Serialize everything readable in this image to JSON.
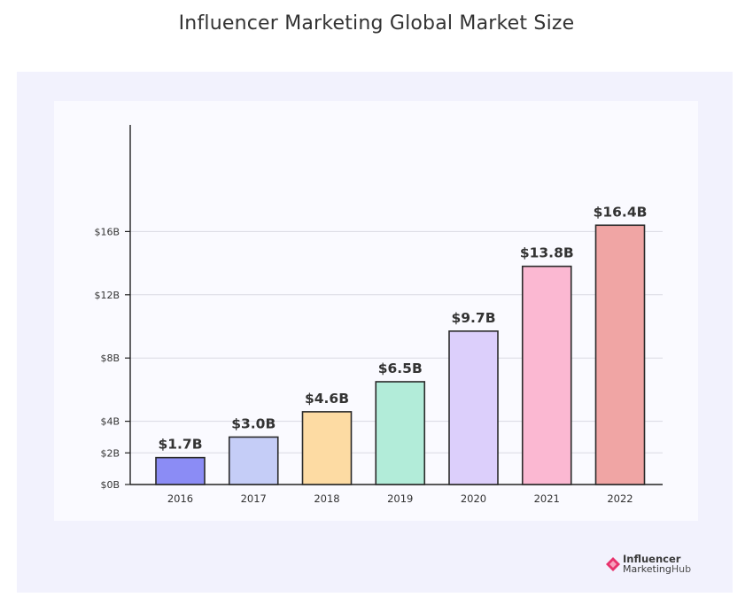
{
  "title": "Influencer Marketing Global Market Size",
  "brand": {
    "line1": "Influencer",
    "line2a": "Marketing",
    "line2b": "Hub"
  },
  "chart_data": {
    "type": "bar",
    "title": "Influencer Marketing Global Market Size",
    "xlabel": "",
    "ylabel": "",
    "categories": [
      "2016",
      "2017",
      "2018",
      "2019",
      "2020",
      "2021",
      "2022"
    ],
    "values": [
      1.7,
      3.0,
      4.6,
      6.5,
      9.7,
      13.8,
      16.4
    ],
    "value_labels": [
      "$1.7B",
      "$3.0B",
      "$4.6B",
      "$6.5B",
      "$9.7B",
      "$13.8B",
      "$16.4B"
    ],
    "bar_colors": [
      "#8b8cf5",
      "#c5cdf7",
      "#fddba3",
      "#b2ecd9",
      "#dccffb",
      "#fbb8d2",
      "#f0a5a4"
    ],
    "y_ticks": [
      0,
      2,
      4,
      8,
      12,
      16
    ],
    "y_tick_labels": [
      "$0B",
      "$2B",
      "$4B",
      "$8B",
      "$12B",
      "$16B"
    ],
    "ylim": [
      0,
      18
    ],
    "grid": true,
    "legend": "none"
  }
}
